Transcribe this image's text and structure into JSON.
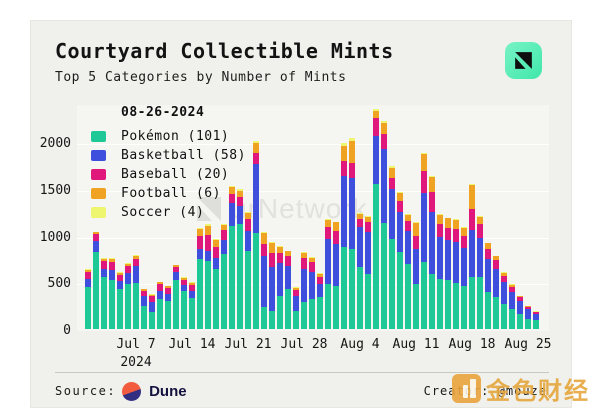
{
  "header": {
    "title": "Courtyard Collectible Mints",
    "subtitle": "Top 5 Categories by Number of Mints"
  },
  "legend": {
    "date": "08-26-2024",
    "items": [
      {
        "name": "Pokémon",
        "count": 101,
        "label": "Pokémon (101)",
        "color": "#1ec997"
      },
      {
        "name": "Basketball",
        "count": 58,
        "label": "Basketball (58)",
        "color": "#3d4fdc"
      },
      {
        "name": "Baseball",
        "count": 20,
        "label": "Baseball (20)",
        "color": "#e0187b"
      },
      {
        "name": "Football",
        "count": 6,
        "label": "Football (6)",
        "color": "#f0a223"
      },
      {
        "name": "Soccer",
        "count": 4,
        "label": "Soccer (4)",
        "color": "#eef56f"
      }
    ]
  },
  "chart_data": {
    "type": "bar",
    "stacked": true,
    "title": "Courtyard Collectible Mints",
    "xlabel": "",
    "ylabel": "",
    "ylim": [
      0,
      2400
    ],
    "y_ticks": [
      0,
      500,
      1000,
      1500,
      2000
    ],
    "x_tick_labels": [
      "Jul 7",
      "Jul 14",
      "Jul 21",
      "Jul 28",
      "Aug 4",
      "Aug 11",
      "Aug 18",
      "Aug 25"
    ],
    "x_tick_day_indices": [
      6,
      13,
      20,
      27,
      34,
      41,
      48,
      55
    ],
    "year_label": "2024",
    "legend_position": "top-left",
    "grid": true,
    "categories": [
      "Jul 1",
      "Jul 2",
      "Jul 3",
      "Jul 4",
      "Jul 5",
      "Jul 6",
      "Jul 7",
      "Jul 8",
      "Jul 9",
      "Jul 10",
      "Jul 11",
      "Jul 12",
      "Jul 13",
      "Jul 14",
      "Jul 15",
      "Jul 16",
      "Jul 17",
      "Jul 18",
      "Jul 19",
      "Jul 20",
      "Jul 21",
      "Jul 22",
      "Jul 23",
      "Jul 24",
      "Jul 25",
      "Jul 26",
      "Jul 27",
      "Jul 28",
      "Jul 29",
      "Jul 30",
      "Jul 31",
      "Aug 1",
      "Aug 2",
      "Aug 3",
      "Aug 4",
      "Aug 5",
      "Aug 6",
      "Aug 7",
      "Aug 8",
      "Aug 9",
      "Aug 10",
      "Aug 11",
      "Aug 12",
      "Aug 13",
      "Aug 14",
      "Aug 15",
      "Aug 16",
      "Aug 17",
      "Aug 18",
      "Aug 19",
      "Aug 20",
      "Aug 21",
      "Aug 22",
      "Aug 23",
      "Aug 24",
      "Aug 25",
      "Aug 26"
    ],
    "series": [
      {
        "name": "Pokémon",
        "color": "#1ec997",
        "values": [
          445,
          820,
          552,
          528,
          428,
          480,
          498,
          250,
          178,
          320,
          303,
          524,
          410,
          330,
          748,
          730,
          640,
          808,
          1105,
          1124,
          838,
          1034,
          232,
          196,
          355,
          428,
          196,
          285,
          321,
          340,
          481,
          464,
          874,
          856,
          660,
          590,
          1551,
          1141,
          963,
          820,
          695,
          481,
          713,
          590,
          540,
          520,
          490,
          460,
          560,
          560,
          400,
          340,
          265,
          210,
          160,
          110,
          101
        ]
      },
      {
        "name": "Basketball",
        "color": "#3d4fdc",
        "values": [
          90,
          125,
          95,
          107,
          90,
          125,
          178,
          107,
          107,
          90,
          71,
          82,
          61,
          78,
          107,
          107,
          120,
          150,
          250,
          196,
          214,
          731,
          553,
          464,
          355,
          250,
          160,
          357,
          285,
          140,
          482,
          446,
          767,
          767,
          428,
          446,
          517,
          785,
          535,
          430,
          350,
          374,
          749,
          660,
          450,
          430,
          440,
          410,
          500,
          420,
          350,
          300,
          235,
          190,
          140,
          100,
          58
        ]
      },
      {
        "name": "Baseball",
        "color": "#e0187b",
        "values": [
          75,
          70,
          82,
          86,
          66,
          71,
          78,
          53,
          64,
          70,
          61,
          61,
          57,
          61,
          143,
          168,
          120,
          100,
          90,
          100,
          125,
          125,
          125,
          160,
          100,
          100,
          64,
          114,
          107,
          75,
          125,
          143,
          160,
          160,
          89,
          107,
          196,
          160,
          125,
          125,
          110,
          143,
          232,
          220,
          130,
          135,
          140,
          130,
          230,
          150,
          110,
          95,
          65,
          52,
          38,
          28,
          20
        ]
      },
      {
        "name": "Football",
        "color": "#f0a223",
        "values": [
          25,
          22,
          25,
          28,
          20,
          26,
          32,
          15,
          20,
          20,
          25,
          15,
          22,
          26,
          78,
          104,
          70,
          56,
          80,
          60,
          64,
          107,
          118,
          100,
          70,
          53,
          25,
          57,
          53,
          35,
          82,
          89,
          160,
          232,
          57,
          57,
          71,
          125,
          107,
          80,
          70,
          136,
          178,
          160,
          100,
          100,
          99,
          84,
          250,
          75,
          60,
          44,
          35,
          25,
          15,
          10,
          6
        ]
      },
      {
        "name": "Soccer",
        "color": "#eef56f",
        "values": [
          8,
          8,
          8,
          8,
          8,
          8,
          8,
          6,
          6,
          6,
          6,
          6,
          6,
          6,
          12,
          14,
          10,
          10,
          12,
          18,
          8,
          18,
          8,
          8,
          8,
          8,
          6,
          8,
          8,
          8,
          10,
          10,
          36,
          36,
          12,
          12,
          18,
          18,
          18,
          10,
          8,
          8,
          18,
          12,
          10,
          10,
          8,
          6,
          11,
          8,
          7,
          6,
          6,
          4,
          4,
          2,
          4
        ]
      }
    ]
  },
  "watermarks": {
    "chart_text": "urNetwork",
    "corner_text": "金色财经"
  },
  "footer": {
    "source_label": "Source:",
    "source_name": "Dune",
    "creator_label": "Creator:",
    "creator_handle": "@mouze"
  },
  "colors": {
    "card_bg": "#f0f0ec",
    "plot_bg": "#f5f5f2",
    "pokemon": "#1ec997",
    "basketball": "#3d4fdc",
    "baseball": "#e0187b",
    "football": "#f0a223",
    "soccer": "#eef56f",
    "brand_icon_bg": "#4fe9b0",
    "dune_orange": "#f25b3d",
    "dune_navy": "#322e82",
    "gold_watermark": "#e6a63c"
  }
}
